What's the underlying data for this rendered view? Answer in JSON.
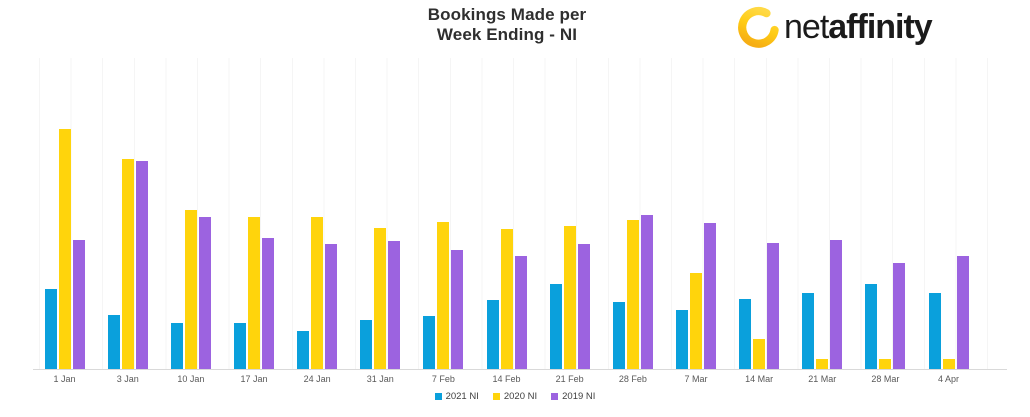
{
  "header": {
    "title_line1": "Bookings Made per",
    "title_line2": "Week Ending - NI"
  },
  "logo": {
    "brand_prefix": "net",
    "brand_suffix": "affinity",
    "icon": "netaffinity-swirl-icon",
    "icon_gradient_start": "#FFD945",
    "icon_gradient_end": "#F6AE14",
    "text_color": "#1b1b1b"
  },
  "colors": {
    "series_2021_ni": "#0AA0DC",
    "series_2020_ni": "#FFD40C",
    "series_2019_ni": "#9C63E0",
    "axis_line": "#d9d9d9",
    "gridline": "#f5f5f5",
    "axis_label_text": "#595959",
    "title_text": "#2f2f2f"
  },
  "chart_data": {
    "type": "bar",
    "title": "Bookings Made per Week Ending - NI",
    "categories": [
      "1 Jan",
      "3 Jan",
      "10 Jan",
      "17 Jan",
      "24 Jan",
      "31 Jan",
      "7 Feb",
      "14 Feb",
      "21 Feb",
      "28 Feb",
      "7 Mar",
      "14 Mar",
      "21 Mar",
      "28 Mar",
      "4 Apr"
    ],
    "series": [
      {
        "name": "2021 NI",
        "color": "#0AA0DC",
        "values": [
          80,
          54,
          46,
          46,
          38,
          49,
          53,
          69,
          85,
          67,
          59,
          70,
          76,
          85,
          76
        ]
      },
      {
        "name": "2020 NI",
        "color": "#FFD40C",
        "values": [
          240,
          210,
          159,
          152,
          152,
          141,
          147,
          140,
          143,
          149,
          96,
          30,
          10,
          10,
          10
        ]
      },
      {
        "name": "2019 NI",
        "color": "#9C63E0",
        "values": [
          129,
          208,
          152,
          131,
          125,
          128,
          119,
          113,
          125,
          154,
          146,
          126,
          129,
          106,
          113
        ]
      }
    ],
    "xlabel": "",
    "ylabel": "",
    "ylim": [
      0,
      245
    ],
    "y_axis_labels_visible": false,
    "gridlines": "faint-vertical",
    "legend_position": "bottom-center"
  }
}
